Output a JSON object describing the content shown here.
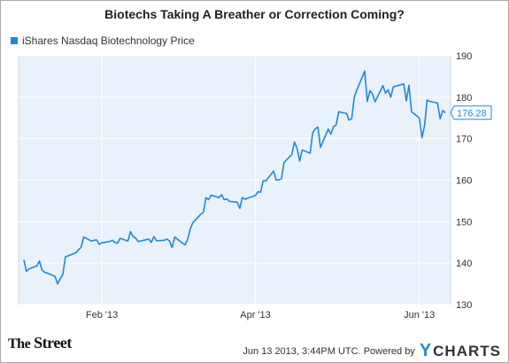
{
  "chart_data": {
    "type": "line",
    "title": "Biotechs Taking A Breather or Correction Coming?",
    "series": [
      {
        "name": "iShares Nasdaq Biotechnology Price",
        "color": "#1f8ad6",
        "x": [
          "2013-01-02",
          "2013-01-03",
          "2013-01-04",
          "2013-01-07",
          "2013-01-08",
          "2013-01-09",
          "2013-01-10",
          "2013-01-11",
          "2013-01-14",
          "2013-01-15",
          "2013-01-16",
          "2013-01-17",
          "2013-01-18",
          "2013-01-22",
          "2013-01-23",
          "2013-01-24",
          "2013-01-25",
          "2013-01-28",
          "2013-01-29",
          "2013-01-30",
          "2013-01-31",
          "2013-02-01",
          "2013-02-04",
          "2013-02-05",
          "2013-02-06",
          "2013-02-07",
          "2013-02-08",
          "2013-02-11",
          "2013-02-12",
          "2013-02-13",
          "2013-02-14",
          "2013-02-15",
          "2013-02-19",
          "2013-02-20",
          "2013-02-21",
          "2013-02-22",
          "2013-02-25",
          "2013-02-26",
          "2013-02-27",
          "2013-02-28",
          "2013-03-01",
          "2013-03-04",
          "2013-03-05",
          "2013-03-06",
          "2013-03-07",
          "2013-03-08",
          "2013-03-11",
          "2013-03-12",
          "2013-03-13",
          "2013-03-14",
          "2013-03-15",
          "2013-03-18",
          "2013-03-19",
          "2013-03-20",
          "2013-03-21",
          "2013-03-22",
          "2013-03-25",
          "2013-03-26",
          "2013-03-27",
          "2013-03-28",
          "2013-04-01",
          "2013-04-02",
          "2013-04-03",
          "2013-04-04",
          "2013-04-05",
          "2013-04-08",
          "2013-04-09",
          "2013-04-10",
          "2013-04-11",
          "2013-04-12",
          "2013-04-15",
          "2013-04-16",
          "2013-04-17",
          "2013-04-18",
          "2013-04-19",
          "2013-04-22",
          "2013-04-23",
          "2013-04-24",
          "2013-04-25",
          "2013-04-26",
          "2013-04-29",
          "2013-04-30",
          "2013-05-01",
          "2013-05-02",
          "2013-05-03",
          "2013-05-06",
          "2013-05-07",
          "2013-05-08",
          "2013-05-09",
          "2013-05-10",
          "2013-05-13",
          "2013-05-14",
          "2013-05-15",
          "2013-05-16",
          "2013-05-17",
          "2013-05-20",
          "2013-05-21",
          "2013-05-22",
          "2013-05-23",
          "2013-05-24",
          "2013-05-28",
          "2013-05-29",
          "2013-05-30",
          "2013-05-31",
          "2013-06-03",
          "2013-06-04",
          "2013-06-05",
          "2013-06-06",
          "2013-06-07",
          "2013-06-10",
          "2013-06-11",
          "2013-06-12",
          "2013-06-13"
        ],
        "values": [
          140.8,
          138.0,
          138.6,
          139.3,
          140.5,
          138.3,
          137.8,
          137.6,
          136.8,
          135.0,
          136.2,
          137.3,
          141.5,
          142.5,
          143.2,
          143.8,
          146.3,
          145.3,
          145.5,
          145.6,
          144.5,
          144.9,
          145.2,
          145.5,
          145.0,
          144.8,
          146.0,
          145.3,
          147.6,
          146.4,
          146.0,
          145.2,
          145.8,
          145.0,
          146.4,
          145.4,
          145.5,
          145.8,
          145.3,
          143.8,
          146.3,
          144.8,
          144.4,
          145.8,
          148.3,
          149.8,
          151.8,
          152.2,
          155.8,
          155.3,
          156.4,
          155.8,
          156.5,
          155.3,
          155.5,
          154.9,
          154.7,
          153.2,
          155.8,
          155.4,
          156.3,
          157.2,
          157.1,
          159.9,
          159.8,
          162.2,
          160.0,
          160.1,
          160.3,
          164.3,
          166.2,
          169.2,
          167.7,
          164.6,
          167.3,
          166.5,
          171.4,
          172.4,
          172.8,
          167.9,
          172.3,
          171.1,
          172.9,
          173.3,
          176.5,
          176.1,
          174.5,
          174.8,
          180.0,
          181.8,
          186.3,
          179.0,
          181.6,
          180.8,
          178.9,
          182.8,
          181.0,
          181.8,
          180.0,
          182.5,
          183.2,
          179.1,
          182.9,
          176.5,
          175.0,
          170.2,
          173.2,
          179.3,
          179.0,
          178.6,
          174.8,
          176.8,
          176.28
        ]
      }
    ],
    "ylim": [
      130,
      190
    ],
    "yticks": [
      130,
      140,
      150,
      160,
      170,
      180,
      190
    ],
    "xticks": [
      {
        "label": "Feb '13",
        "date": "2013-02-01"
      },
      {
        "label": "Apr '13",
        "date": "2013-04-01"
      },
      {
        "label": "Jun '13",
        "date": "2013-06-03"
      }
    ],
    "last_value_label": "176.28",
    "grid": true,
    "legend_position": "top-left"
  },
  "footer": {
    "logo_the": "The",
    "logo_street": "Street",
    "timestamp": "Jun 13 2013, 3:44PM UTC.",
    "powered_by": "Powered by",
    "ycharts_y": "Y",
    "ycharts_rest": "CHARTS"
  },
  "colors": {
    "plot_bg": "#e9f1fb",
    "grid": "#ffffff",
    "line": "#1f8ad6",
    "axis_text": "#333333"
  }
}
